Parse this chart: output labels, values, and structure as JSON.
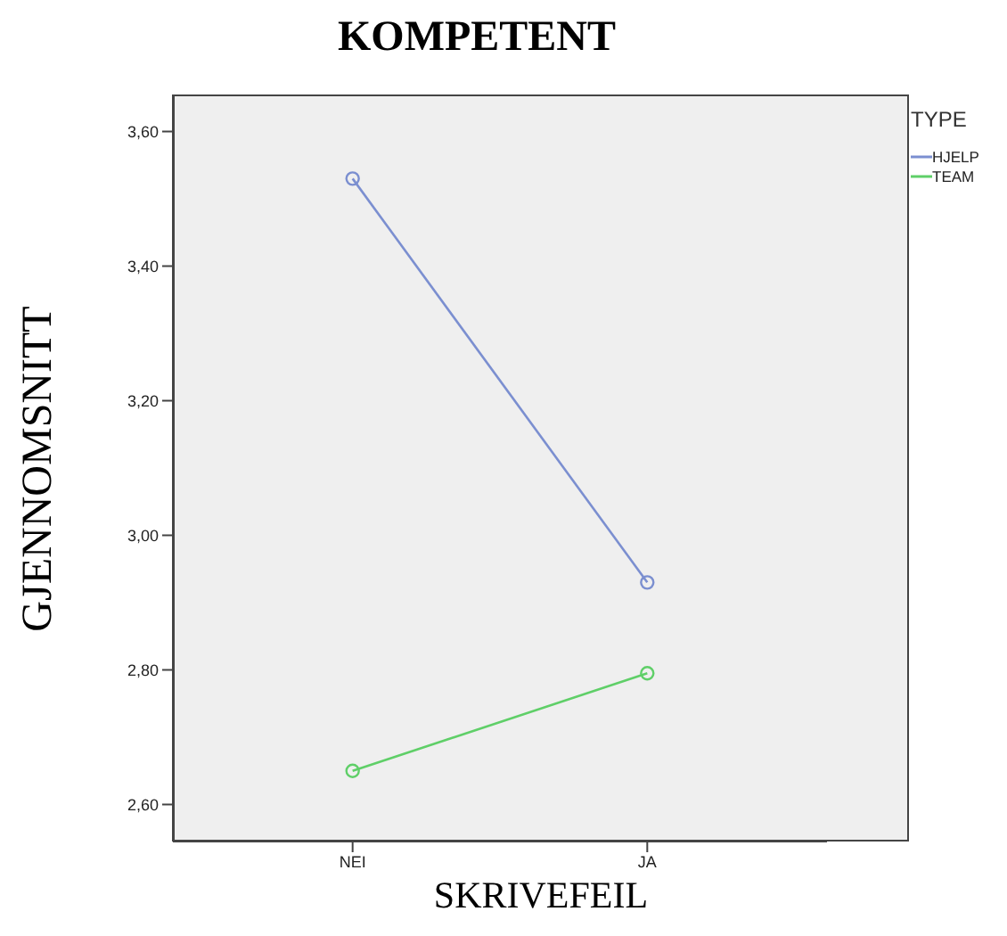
{
  "chart_data": {
    "type": "line",
    "title": "KOMPETENT",
    "xlabel": "SKRIVEFEIL",
    "ylabel": "GJENNOMSNITT",
    "legend_title": "TYPE",
    "categories": [
      "NEI",
      "JA"
    ],
    "series": [
      {
        "name": "HJELP",
        "color": "#7b8fd0",
        "values": [
          3.53,
          2.93
        ]
      },
      {
        "name": "TEAM",
        "color": "#5fcf68",
        "values": [
          2.65,
          2.795
        ]
      }
    ],
    "ylim": [
      2.545,
      3.655
    ],
    "yticks": [
      {
        "value": 2.6,
        "label": "2,60"
      },
      {
        "value": 2.8,
        "label": "2,80"
      },
      {
        "value": 3.0,
        "label": "3,00"
      },
      {
        "value": 3.2,
        "label": "3,20"
      },
      {
        "value": 3.4,
        "label": "3,40"
      },
      {
        "value": 3.6,
        "label": "3,60"
      }
    ],
    "grid": false,
    "legend": "top right",
    "marker": "circle",
    "line_style": "solid"
  }
}
